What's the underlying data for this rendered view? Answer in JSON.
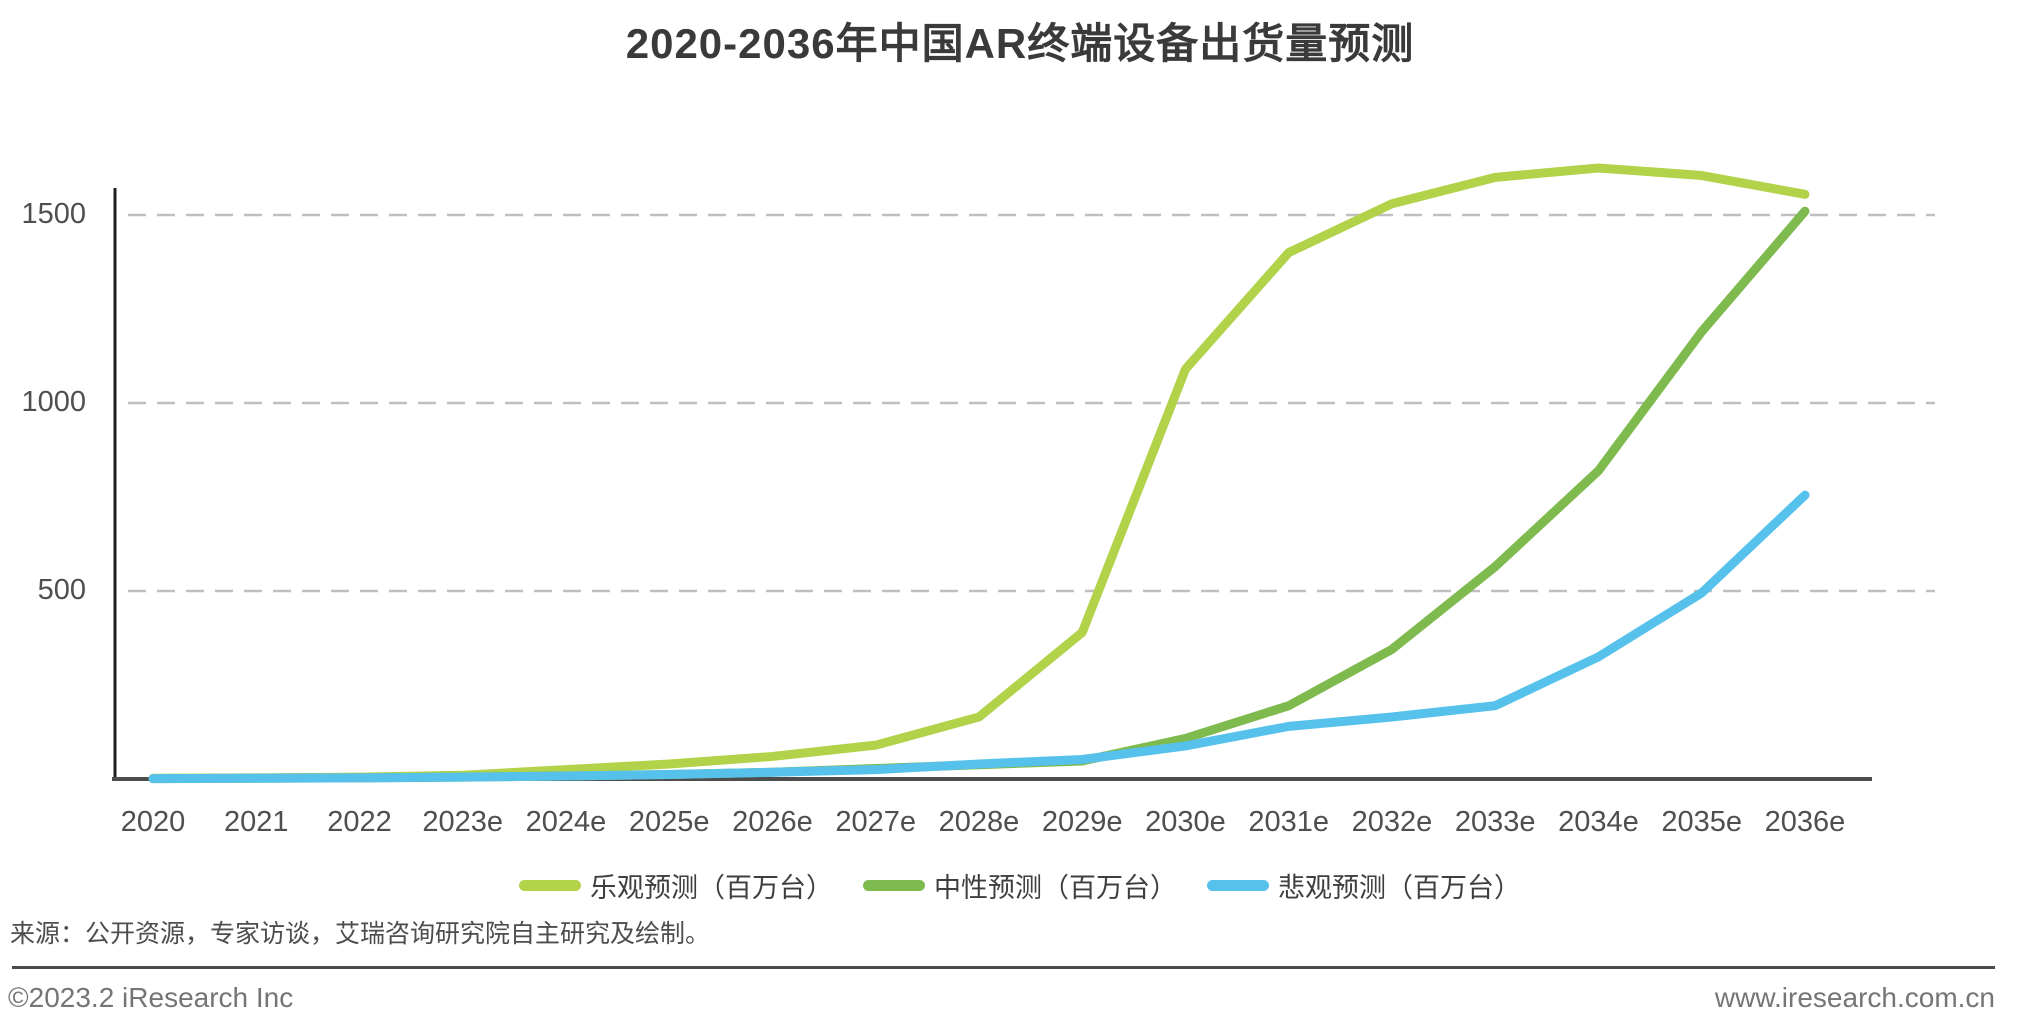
{
  "title": "2020-2036年中国AR终端设备出货量预测",
  "chart_data": {
    "type": "line",
    "categories": [
      "2020",
      "2021",
      "2022",
      "2023e",
      "2024e",
      "2025e",
      "2026e",
      "2027e",
      "2028e",
      "2029e",
      "2030e",
      "2031e",
      "2032e",
      "2033e",
      "2034e",
      "2035e",
      "2036e"
    ],
    "series": [
      {
        "name": "乐观预测（百万台）",
        "color": "#b2d24a",
        "values": [
          2,
          3,
          5,
          10,
          25,
          40,
          60,
          90,
          165,
          390,
          1090,
          1400,
          1530,
          1600,
          1625,
          1605,
          1555
        ]
      },
      {
        "name": "中性预测（百万台）",
        "color": "#7eba4d",
        "values": [
          1,
          2,
          3,
          5,
          8,
          12,
          18,
          28,
          38,
          48,
          108,
          195,
          345,
          565,
          820,
          1190,
          1510
        ]
      },
      {
        "name": "悲观预测（百万台）",
        "color": "#56c2ec",
        "values": [
          1,
          2,
          3,
          5,
          8,
          12,
          18,
          25,
          40,
          52,
          88,
          140,
          165,
          195,
          325,
          495,
          755
        ]
      }
    ],
    "y_ticks": [
      500,
      1000,
      1500
    ],
    "ylim": [
      0,
      1700
    ],
    "xlabel": "",
    "ylabel": "",
    "grid": "horizontal-dashed",
    "legend_position": "bottom"
  },
  "source_note": "来源：公开资源，专家访谈，艾瑞咨询研究院自主研究及绘制。",
  "footer": {
    "left": "©2023.2 iResearch Inc",
    "right": "www.iresearch.com.cn"
  },
  "colors": {
    "optimistic": "#b2d24a",
    "neutral": "#7eba4d",
    "pessimistic": "#56c2ec",
    "gridline": "#bfbfbf",
    "axis": "#4d4d4d",
    "title_text": "#3a3a3a",
    "tick_text": "#4f4f4f"
  }
}
